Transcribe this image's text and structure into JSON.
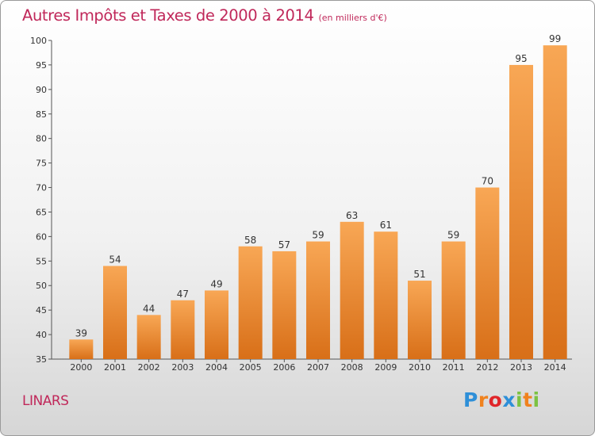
{
  "header": {
    "title": "Autres Impôts et Taxes de 2000 à 2014",
    "unit": "(en milliers d'€)"
  },
  "footer": {
    "commune": "LINARS",
    "brand": "Proxiti"
  },
  "colors": {
    "title": "#c0285a",
    "bar_top": "#f8a755",
    "bar_bottom": "#d86f18",
    "brand_letters": [
      "#2e8fd8",
      "#f0821e",
      "#e0262a",
      "#2e8fd8",
      "#7cc242",
      "#f0821e",
      "#7cc242"
    ]
  },
  "chart_data": {
    "type": "bar",
    "title": "Autres Impôts et Taxes de 2000 à 2014",
    "ylabel": "",
    "xlabel": "",
    "categories": [
      "2000",
      "2001",
      "2002",
      "2003",
      "2004",
      "2005",
      "2006",
      "2007",
      "2008",
      "2009",
      "2010",
      "2011",
      "2012",
      "2013",
      "2014"
    ],
    "values": [
      39,
      54,
      44,
      47,
      49,
      58,
      57,
      59,
      63,
      61,
      51,
      59,
      70,
      95,
      99
    ],
    "ylim": [
      35,
      100
    ],
    "yticks": [
      35,
      40,
      45,
      50,
      55,
      60,
      65,
      70,
      75,
      80,
      85,
      90,
      95,
      100
    ],
    "grid": false
  }
}
